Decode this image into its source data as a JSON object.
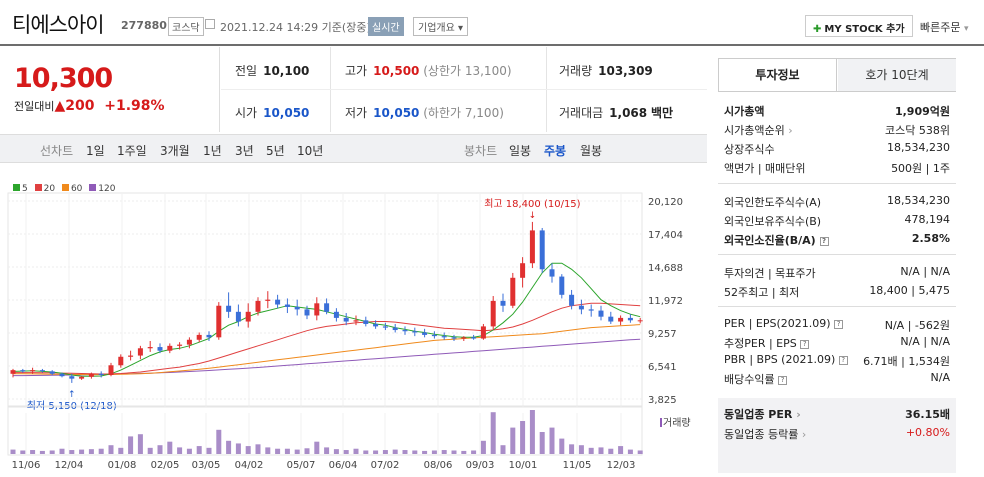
{
  "header": {
    "title": "티에스아이",
    "code": "277880",
    "market": "코스닥",
    "datetime": "2021.12.24 14:29 기준(장중)",
    "realtime": "실시간",
    "company": "기업개요",
    "mystock": "MY STOCK 추가",
    "quick": "빠른주문"
  },
  "price": {
    "current": "10,300",
    "change_label": "전일대비",
    "change": "200",
    "percent": "+1.98%"
  },
  "stats": {
    "prev_label": "전일",
    "prev": "10,100",
    "high_label": "고가",
    "high": "10,500",
    "upper": "(상한가 13,100)",
    "vol_label": "거래량",
    "vol": "103,309",
    "open_label": "시가",
    "open": "10,050",
    "low_label": "저가",
    "low": "10,050",
    "lower": "(하한가 7,100)",
    "amt_label": "거래대금",
    "amt": "1,068",
    "amt_unit": "백만"
  },
  "periods": {
    "line_label": "선차트",
    "items": [
      "1일",
      "1주일",
      "3개월",
      "1년",
      "3년",
      "5년",
      "10년"
    ],
    "candle_label": "봉차트",
    "candles": [
      "일봉",
      "주봉",
      "월봉"
    ]
  },
  "chart_data": {
    "type": "candlestick",
    "legend": [
      "5",
      "20",
      "60",
      "120"
    ],
    "y_ticks": [
      "20,120",
      "17,404",
      "14,688",
      "11,972",
      "9,257",
      "6,541",
      "3,825"
    ],
    "x_ticks": [
      "11/06",
      "12/04",
      "01/08",
      "02/05",
      "03/05",
      "04/02",
      "05/07",
      "06/04",
      "07/02",
      "08/06",
      "09/03",
      "10/01",
      "11/05",
      "12/03"
    ],
    "high_annotation": "최고 18,400 (10/15)",
    "low_annotation": "최저 5,150 (12/18)",
    "volume_label": "거래량",
    "ohlc": [
      [
        5900,
        6300,
        5600,
        6200
      ],
      [
        6200,
        6300,
        6000,
        6100
      ],
      [
        6100,
        6400,
        5900,
        6200
      ],
      [
        6200,
        6300,
        6000,
        6150
      ],
      [
        6100,
        6200,
        5800,
        5900
      ],
      [
        5900,
        6000,
        5600,
        5700
      ],
      [
        5700,
        5900,
        5150,
        5500
      ],
      [
        5500,
        5700,
        5400,
        5650
      ],
      [
        5650,
        6000,
        5500,
        5900
      ],
      [
        5900,
        6100,
        5600,
        5800
      ],
      [
        5800,
        6800,
        5700,
        6600
      ],
      [
        6600,
        7500,
        6400,
        7300
      ],
      [
        7300,
        7800,
        7000,
        7400
      ],
      [
        7400,
        8200,
        7100,
        8000
      ],
      [
        8000,
        8600,
        7700,
        8100
      ],
      [
        8100,
        8400,
        7600,
        7800
      ],
      [
        7800,
        8400,
        7600,
        8200
      ],
      [
        8200,
        8500,
        7900,
        8300
      ],
      [
        8300,
        8900,
        8000,
        8700
      ],
      [
        8700,
        9300,
        8500,
        9100
      ],
      [
        9100,
        9400,
        8600,
        8900
      ],
      [
        8900,
        11800,
        8700,
        11500
      ],
      [
        11500,
        12600,
        10500,
        11000
      ],
      [
        11000,
        11600,
        9800,
        10200
      ],
      [
        10200,
        11700,
        9700,
        11000
      ],
      [
        11000,
        12200,
        10700,
        11900
      ],
      [
        11900,
        12700,
        11300,
        12000
      ],
      [
        12000,
        12400,
        11300,
        11600
      ],
      [
        11600,
        12100,
        10900,
        11400
      ],
      [
        11400,
        12000,
        10700,
        11200
      ],
      [
        11200,
        11500,
        10400,
        10700
      ],
      [
        10700,
        12200,
        10300,
        11700
      ],
      [
        11700,
        12100,
        10800,
        11000
      ],
      [
        11000,
        11300,
        10200,
        10500
      ],
      [
        10500,
        10900,
        9900,
        10200
      ],
      [
        10200,
        10700,
        9900,
        10300
      ],
      [
        10300,
        10600,
        9800,
        10000
      ],
      [
        10000,
        10300,
        9600,
        9800
      ],
      [
        9800,
        10100,
        9500,
        9700
      ],
      [
        9700,
        10000,
        9300,
        9500
      ],
      [
        9500,
        9800,
        9100,
        9400
      ],
      [
        9400,
        9700,
        9000,
        9300
      ],
      [
        9300,
        9600,
        8900,
        9100
      ],
      [
        9100,
        9400,
        8800,
        9000
      ],
      [
        9000,
        9300,
        8700,
        8900
      ],
      [
        8900,
        9100,
        8600,
        8800
      ],
      [
        8800,
        9000,
        8600,
        8900
      ],
      [
        8900,
        9100,
        8700,
        8800
      ],
      [
        8800,
        10000,
        8700,
        9800
      ],
      [
        9800,
        12300,
        9500,
        11900
      ],
      [
        11900,
        12500,
        11000,
        11500
      ],
      [
        11500,
        14200,
        11300,
        13800
      ],
      [
        13800,
        15500,
        13000,
        15000
      ],
      [
        15000,
        18400,
        14600,
        17700
      ],
      [
        17700,
        17900,
        14200,
        14500
      ],
      [
        14500,
        15000,
        13400,
        13900
      ],
      [
        13900,
        14100,
        12100,
        12400
      ],
      [
        12400,
        12800,
        11200,
        11500
      ],
      [
        11500,
        12000,
        10800,
        11200
      ],
      [
        11200,
        11600,
        10600,
        11100
      ],
      [
        11100,
        11500,
        10300,
        10600
      ],
      [
        10600,
        11000,
        10000,
        10200
      ],
      [
        10200,
        10700,
        9900,
        10500
      ],
      [
        10500,
        10800,
        10100,
        10300
      ],
      [
        10300,
        10500,
        10050,
        10300
      ]
    ],
    "ma5": [
      6100,
      6120,
      6150,
      6100,
      6050,
      5950,
      5800,
      5700,
      5700,
      5720,
      5900,
      6200,
      6600,
      7000,
      7400,
      7700,
      7900,
      8000,
      8200,
      8500,
      8800,
      9400,
      9900,
      10200,
      10600,
      10900,
      11100,
      11300,
      11500,
      11400,
      11300,
      11200,
      11000,
      10800,
      10600,
      10400,
      10200,
      10000,
      9900,
      9700,
      9550,
      9400,
      9300,
      9150,
      9050,
      8950,
      8900,
      8900,
      9050,
      9500,
      10100,
      10800,
      11800,
      13000,
      14200,
      15000,
      15000,
      14500,
      13800,
      12900,
      12000,
      11500,
      11100,
      10800,
      10600
    ],
    "ma20": [
      6000,
      6000,
      6000,
      5990,
      5980,
      5960,
      5940,
      5920,
      5900,
      5880,
      5890,
      5920,
      5980,
      6050,
      6150,
      6250,
      6350,
      6450,
      6600,
      6750,
      6950,
      7200,
      7450,
      7700,
      7950,
      8200,
      8450,
      8700,
      8950,
      9200,
      9450,
      9650,
      9800,
      9900,
      10000,
      10100,
      10150,
      10200,
      10200,
      10150,
      10050,
      9950,
      9850,
      9750,
      9650,
      9600,
      9550,
      9500,
      9450,
      9500,
      9600,
      9750,
      10000,
      10300,
      10650,
      11000,
      11300,
      11500,
      11600,
      11700,
      11700,
      11650,
      11600,
      11550,
      11500
    ],
    "ma60": [
      5900,
      5900,
      5890,
      5880,
      5870,
      5860,
      5850,
      5840,
      5830,
      5830,
      5840,
      5860,
      5880,
      5910,
      5950,
      6000,
      6060,
      6130,
      6200,
      6280,
      6360,
      6450,
      6550,
      6650,
      6750,
      6850,
      6950,
      7050,
      7150,
      7250,
      7350,
      7450,
      7550,
      7650,
      7750,
      7850,
      7950,
      8050,
      8150,
      8250,
      8350,
      8450,
      8550,
      8650,
      8700,
      8750,
      8800,
      8850,
      8900,
      8950,
      9000,
      9050,
      9100,
      9150,
      9200,
      9300,
      9400,
      9500,
      9600,
      9700,
      9750,
      9800,
      9850,
      9900,
      9950
    ],
    "ma120": [
      5750,
      5750,
      5760,
      5770,
      5780,
      5790,
      5800,
      5810,
      5830,
      5850,
      5870,
      5890,
      5910,
      5930,
      5950,
      5980,
      6010,
      6050,
      6090,
      6130,
      6170,
      6220,
      6270,
      6320,
      6370,
      6420,
      6480,
      6540,
      6600,
      6660,
      6720,
      6780,
      6840,
      6900,
      6960,
      7020,
      7080,
      7140,
      7200,
      7260,
      7320,
      7380,
      7440,
      7500,
      7560,
      7620,
      7680,
      7740,
      7800,
      7860,
      7920,
      7980,
      8040,
      8100,
      8160,
      8220,
      8280,
      8340,
      8400,
      8460,
      8520,
      8580,
      8640,
      8700,
      8750
    ],
    "volume": [
      10,
      8,
      9,
      7,
      8,
      12,
      9,
      10,
      11,
      12,
      20,
      14,
      40,
      45,
      14,
      20,
      28,
      15,
      12,
      18,
      14,
      55,
      30,
      24,
      18,
      22,
      15,
      12,
      12,
      10,
      13,
      28,
      15,
      11,
      9,
      12,
      8,
      8,
      9,
      10,
      9,
      8,
      7,
      8,
      9,
      8,
      7,
      8,
      30,
      95,
      20,
      60,
      75,
      100,
      50,
      60,
      35,
      22,
      20,
      14,
      15,
      12,
      18,
      10,
      8
    ]
  },
  "info": {
    "tab1": "투자정보",
    "tab2": "호가 10단계",
    "mcap_label": "시가총액",
    "mcap": "1,909억원",
    "mcap_rank_label": "시가총액순위",
    "mcap_rank": "코스닥 538위",
    "shares_label": "상장주식수",
    "shares": "18,534,230",
    "face_label": "액면가 | 매매단위",
    "face": "500원 | 1주",
    "foreign_limit_label": "외국인한도주식수(A)",
    "foreign_limit": "18,534,230",
    "foreign_hold_label": "외국인보유주식수(B)",
    "foreign_hold": "478,194",
    "foreign_rate_label": "외국인소진율(B/A)",
    "foreign_rate": "2.58%",
    "opinion_label": "투자의견 | 목표주가",
    "opinion": "N/A | N/A",
    "week52_label": "52주최고 | 최저",
    "week52": "18,400 | 5,475",
    "per_label": "PER | EPS(2021.09)",
    "per": "N/A | -562원",
    "est_label": "추정PER | EPS",
    "est": "N/A | N/A",
    "pbr_label": "PBR | BPS (2021.09)",
    "pbr": "6.71배 | 1,534원",
    "div_label": "배당수익률",
    "div": "N/A",
    "sector_per_label": "동일업종 PER",
    "sector_per": "36.15배",
    "sector_chg_label": "동일업종 등락률",
    "sector_chg": "+0.80%"
  }
}
